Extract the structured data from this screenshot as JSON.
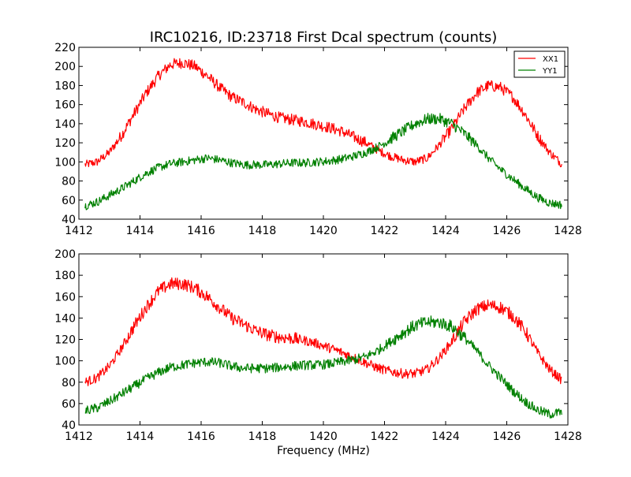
{
  "colors": {
    "xx1": "#ff0000",
    "yy1": "#008000",
    "axes": "#000000",
    "background": "#ffffff"
  },
  "chart_data": [
    {
      "type": "line",
      "title": "IRC10216, ID:23718 First Dcal spectrum (counts)",
      "xlabel": "",
      "ylabel": "",
      "xlim": [
        1412,
        1428
      ],
      "ylim": [
        40,
        220
      ],
      "xticks": [
        "1412",
        "1414",
        "1416",
        "1418",
        "1420",
        "1422",
        "1424",
        "1426",
        "1428"
      ],
      "yticks": [
        "40",
        "60",
        "80",
        "100",
        "120",
        "140",
        "160",
        "180",
        "200",
        "220"
      ],
      "legend": {
        "placement": "top-right"
      },
      "grid": false,
      "series": [
        {
          "name": "XX1",
          "color": "#ff0000",
          "x": [
            1412.2,
            1412.6,
            1413.0,
            1413.4,
            1413.8,
            1414.2,
            1414.6,
            1415.0,
            1415.4,
            1415.8,
            1416.2,
            1416.6,
            1417.0,
            1417.4,
            1417.8,
            1418.2,
            1418.6,
            1419.0,
            1419.4,
            1419.8,
            1420.2,
            1420.6,
            1421.0,
            1421.4,
            1421.8,
            1422.2,
            1422.6,
            1423.0,
            1423.4,
            1423.8,
            1424.2,
            1424.6,
            1425.0,
            1425.4,
            1425.8,
            1426.2,
            1426.6,
            1427.0,
            1427.4,
            1427.8
          ],
          "y": [
            97,
            100,
            110,
            128,
            150,
            172,
            190,
            202,
            204,
            200,
            190,
            178,
            168,
            162,
            155,
            150,
            146,
            144,
            142,
            139,
            136,
            132,
            126,
            120,
            112,
            106,
            102,
            100,
            104,
            118,
            135,
            155,
            172,
            180,
            178,
            168,
            150,
            128,
            110,
            98
          ]
        },
        {
          "name": "YY1",
          "color": "#008000",
          "x": [
            1412.2,
            1412.6,
            1413.0,
            1413.4,
            1413.8,
            1414.2,
            1414.6,
            1415.0,
            1415.4,
            1415.8,
            1416.2,
            1416.6,
            1417.0,
            1417.4,
            1417.8,
            1418.2,
            1418.6,
            1419.0,
            1419.4,
            1419.8,
            1420.2,
            1420.6,
            1421.0,
            1421.4,
            1421.8,
            1422.2,
            1422.6,
            1423.0,
            1423.4,
            1423.8,
            1424.2,
            1424.6,
            1425.0,
            1425.4,
            1425.8,
            1426.2,
            1426.6,
            1427.0,
            1427.4,
            1427.8
          ],
          "y": [
            54,
            58,
            65,
            72,
            80,
            88,
            94,
            98,
            100,
            102,
            104,
            102,
            99,
            97,
            97,
            97,
            98,
            99,
            99,
            100,
            101,
            103,
            106,
            110,
            116,
            124,
            132,
            140,
            145,
            145,
            140,
            130,
            118,
            104,
            92,
            82,
            72,
            63,
            57,
            55
          ]
        }
      ]
    },
    {
      "type": "line",
      "title": "",
      "xlabel": "Frequency (MHz)",
      "ylabel": "",
      "xlim": [
        1412,
        1428
      ],
      "ylim": [
        40,
        200
      ],
      "xticks": [
        "1412",
        "1414",
        "1416",
        "1418",
        "1420",
        "1422",
        "1424",
        "1426",
        "1428"
      ],
      "yticks": [
        "40",
        "60",
        "80",
        "100",
        "120",
        "140",
        "160",
        "180",
        "200"
      ],
      "grid": false,
      "series": [
        {
          "color": "#ff0000",
          "x": [
            1412.2,
            1412.6,
            1413.0,
            1413.4,
            1413.8,
            1414.2,
            1414.6,
            1415.0,
            1415.4,
            1415.8,
            1416.2,
            1416.6,
            1417.0,
            1417.4,
            1417.8,
            1418.2,
            1418.6,
            1419.0,
            1419.4,
            1419.8,
            1420.2,
            1420.6,
            1421.0,
            1421.4,
            1421.8,
            1422.2,
            1422.6,
            1423.0,
            1423.4,
            1423.8,
            1424.2,
            1424.6,
            1425.0,
            1425.4,
            1425.8,
            1426.2,
            1426.6,
            1427.0,
            1427.4,
            1427.8
          ],
          "y": [
            80,
            84,
            95,
            112,
            132,
            150,
            165,
            172,
            172,
            168,
            160,
            150,
            140,
            134,
            128,
            124,
            122,
            121,
            119,
            116,
            112,
            108,
            103,
            98,
            93,
            90,
            88,
            88,
            92,
            103,
            118,
            136,
            148,
            152,
            150,
            142,
            128,
            108,
            92,
            82
          ]
        },
        {
          "color": "#008000",
          "x": [
            1412.2,
            1412.6,
            1413.0,
            1413.4,
            1413.8,
            1414.2,
            1414.6,
            1415.0,
            1415.4,
            1415.8,
            1416.2,
            1416.6,
            1417.0,
            1417.4,
            1417.8,
            1418.2,
            1418.6,
            1419.0,
            1419.4,
            1419.8,
            1420.2,
            1420.6,
            1421.0,
            1421.4,
            1421.8,
            1422.2,
            1422.6,
            1423.0,
            1423.4,
            1423.8,
            1424.2,
            1424.6,
            1425.0,
            1425.4,
            1425.8,
            1426.2,
            1426.6,
            1427.0,
            1427.4,
            1427.8
          ],
          "y": [
            53,
            56,
            62,
            69,
            76,
            83,
            89,
            94,
            96,
            98,
            99,
            98,
            95,
            93,
            93,
            93,
            94,
            95,
            96,
            96,
            97,
            99,
            101,
            104,
            110,
            118,
            126,
            133,
            136,
            136,
            132,
            122,
            110,
            96,
            84,
            72,
            62,
            54,
            50,
            52
          ]
        }
      ]
    }
  ]
}
